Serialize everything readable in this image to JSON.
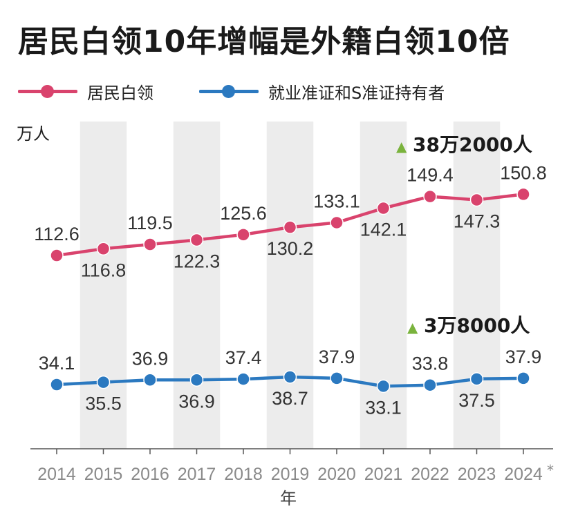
{
  "title": "居民白领10年增幅是外籍白领10倍",
  "colors": {
    "resident": "#d9436d",
    "foreign": "#2b79c0",
    "band": "#ececec",
    "axis": "#555555",
    "tick": "#8a8a8a",
    "triangle": "#7ab33d"
  },
  "chart_data": {
    "type": "line",
    "ylabel": "万人",
    "xlabel": "年",
    "categories": [
      "2014",
      "2015",
      "2016",
      "2017",
      "2018",
      "2019",
      "2020",
      "2021",
      "2022",
      "2023",
      "2024"
    ],
    "last_category_suffix": "*",
    "series": [
      {
        "name": "居民白领",
        "values": [
          112.6,
          116.8,
          119.5,
          122.3,
          125.6,
          130.2,
          133.1,
          142.1,
          149.4,
          147.3,
          150.8
        ]
      },
      {
        "name": "就业准证和S准证持有者",
        "values": [
          34.1,
          35.5,
          36.9,
          36.9,
          37.4,
          38.7,
          37.9,
          33.1,
          33.8,
          37.5,
          37.9
        ]
      }
    ],
    "data_labels": [
      [
        "112.6",
        "116.8",
        "119.5",
        "122.3",
        "125.6",
        "130.2",
        "133.1",
        "142.1",
        "149.4",
        "147.3",
        "150.8"
      ],
      [
        "34.1",
        "35.5",
        "36.9",
        "36.9",
        "37.4",
        "38.7",
        "37.9",
        "33.1",
        "33.8",
        "37.5",
        "37.9"
      ]
    ],
    "label_positions": [
      [
        "above",
        "below",
        "above",
        "below",
        "above",
        "below",
        "above",
        "below",
        "above",
        "below",
        "above"
      ],
      [
        "above",
        "below",
        "above",
        "below",
        "above",
        "below",
        "above",
        "below",
        "above",
        "below",
        "above"
      ]
    ],
    "annotations": [
      {
        "marker": "▲",
        "text": "38万2000人",
        "series": 0
      },
      {
        "marker": "▲",
        "text": "3万8000人",
        "series": 1
      }
    ],
    "grid": false,
    "alternating_bands": true
  }
}
